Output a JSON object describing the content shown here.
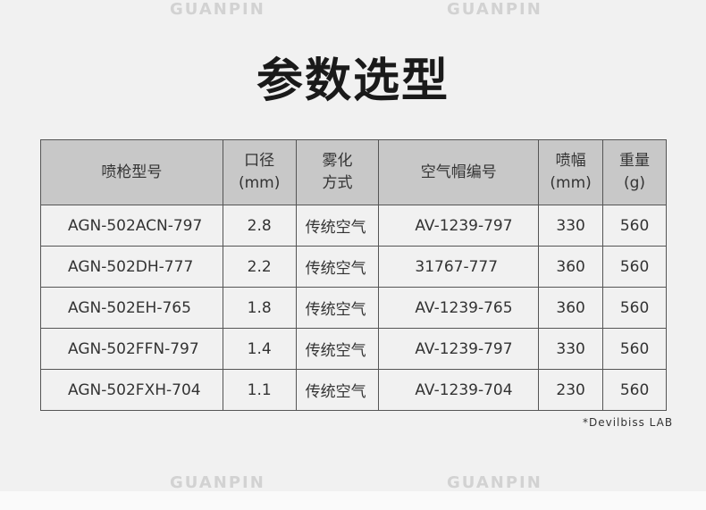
{
  "title": "参数选型",
  "headers": [
    [
      "喷枪型号",
      ""
    ],
    [
      "口径",
      "(mm)"
    ],
    [
      "雾化",
      "方式"
    ],
    [
      "空气帽编号",
      ""
    ],
    [
      "喷幅",
      "(mm)"
    ],
    [
      "重量",
      "(g)"
    ]
  ],
  "rows": [
    [
      "AGN-502ACN-797",
      "2.8",
      "传统空气",
      "AV-1239-797",
      "330",
      "560"
    ],
    [
      "AGN-502DH-777",
      "2.2",
      "传统空气",
      "31767-777",
      "360",
      "560"
    ],
    [
      "AGN-502EH-765",
      "1.8",
      "传统空气",
      "AV-1239-765",
      "360",
      "560"
    ],
    [
      "AGN-502FFN-797",
      "1.4",
      "传统空气",
      "AV-1239-797",
      "330",
      "560"
    ],
    [
      "AGN-502FXH-704",
      "1.1",
      "传统空气",
      "AV-1239-704",
      "230",
      "560"
    ]
  ],
  "note": "*Devilbiss LAB",
  "watermark": "GUANPIN"
}
